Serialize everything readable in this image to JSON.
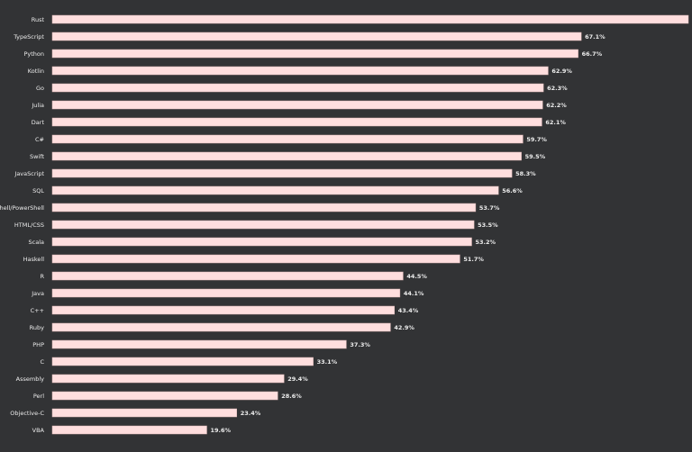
{
  "chart_data": {
    "type": "bar",
    "orientation": "horizontal",
    "title": "",
    "xlabel": "",
    "ylabel": "",
    "categories": [
      "Rust",
      "TypeScript",
      "Python",
      "Kotlin",
      "Go",
      "Julia",
      "Dart",
      "C#",
      "Swift",
      "JavaScript",
      "SQL",
      "Bash/Shell/PowerShell",
      "HTML/CSS",
      "Scala",
      "Haskell",
      "R",
      "Java",
      "C++",
      "Ruby",
      "PHP",
      "C",
      "Assembly",
      "Perl",
      "Objective-C",
      "VBA"
    ],
    "values": [
      null,
      67.1,
      66.7,
      62.9,
      62.3,
      62.2,
      62.1,
      59.7,
      59.5,
      58.3,
      56.6,
      53.7,
      53.5,
      53.2,
      51.7,
      44.5,
      44.1,
      43.4,
      42.9,
      37.3,
      33.1,
      29.4,
      28.6,
      23.4,
      19.6
    ],
    "value_labels": [
      "",
      "67.1%",
      "66.7%",
      "62.9%",
      "62.3%",
      "62.2%",
      "62.1%",
      "59.7%",
      "59.5%",
      "58.3%",
      "56.6%",
      "53.7%",
      "53.5%",
      "53.2%",
      "51.7%",
      "44.5%",
      "44.1%",
      "43.4%",
      "42.9%",
      "37.3%",
      "33.1%",
      "29.4%",
      "28.6%",
      "23.4%",
      "19.6%"
    ],
    "unit": "%",
    "grid": false,
    "legend": "none",
    "colors": {
      "background": "#323335",
      "bar": "#ffdede",
      "bar_edge": "#d8b4b4",
      "text": "#ececec"
    }
  }
}
